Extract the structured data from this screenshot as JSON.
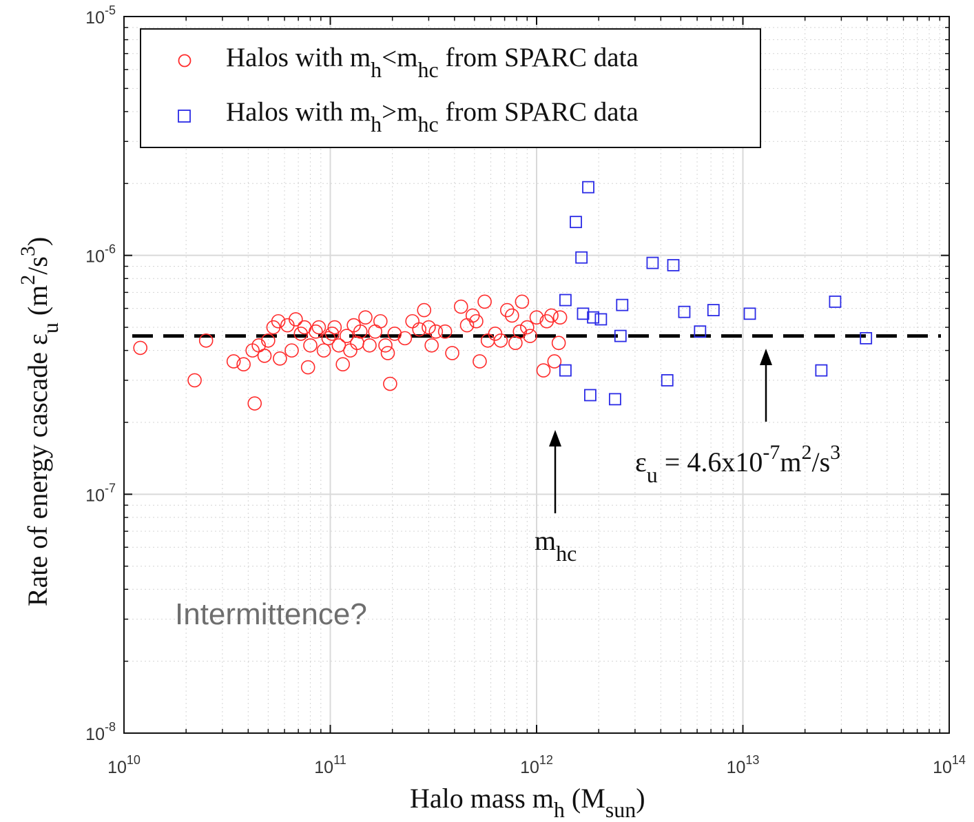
{
  "chart_data": {
    "type": "scatter",
    "title": "",
    "xlabel": {
      "main": "Halo mass m",
      "sub": "h",
      "unit_open": " (M",
      "unit_sub": "sun",
      "unit_close": ")"
    },
    "ylabel": {
      "main": "Rate of energy cascade ε",
      "sub": "u",
      "unit": " (m",
      "sup1": "2",
      "mid": "/s",
      "sup2": "3",
      "close": ")"
    },
    "x_scale": "log",
    "y_scale": "log",
    "xlim": [
      10000000000.0,
      100000000000000.0
    ],
    "ylim": [
      1e-08,
      1e-05
    ],
    "grid": true,
    "x_ticks": [
      {
        "value": 10000000000.0,
        "base": "10",
        "exp": "10"
      },
      {
        "value": 100000000000.0,
        "base": "10",
        "exp": "11"
      },
      {
        "value": 1000000000000.0,
        "base": "10",
        "exp": "12"
      },
      {
        "value": 10000000000000.0,
        "base": "10",
        "exp": "13"
      },
      {
        "value": 100000000000000.0,
        "base": "10",
        "exp": "14"
      }
    ],
    "y_ticks": [
      {
        "value": 1e-08,
        "base": "10",
        "exp": "-8"
      },
      {
        "value": 1e-07,
        "base": "10",
        "exp": "-7"
      },
      {
        "value": 1e-06,
        "base": "10",
        "exp": "-6"
      },
      {
        "value": 1e-05,
        "base": "10",
        "exp": "-5"
      }
    ],
    "legend_position": "top",
    "series": [
      {
        "name": {
          "pre": "Halos with m",
          "s1": "h",
          "op": "<m",
          "s2": "hc",
          "post": " from SPARC data"
        },
        "marker": "circle",
        "color": "#ff2a2a",
        "points": [
          [
            12000000000.0,
            4.1e-07
          ],
          [
            22000000000.0,
            3e-07
          ],
          [
            25000000000.0,
            4.4e-07
          ],
          [
            34000000000.0,
            3.6e-07
          ],
          [
            38000000000.0,
            3.5e-07
          ],
          [
            43000000000.0,
            2.4e-07
          ],
          [
            42000000000.0,
            4e-07
          ],
          [
            45000000000.0,
            4.2e-07
          ],
          [
            48000000000.0,
            3.8e-07
          ],
          [
            50000000000.0,
            4.4e-07
          ],
          [
            53000000000.0,
            5e-07
          ],
          [
            56000000000.0,
            5.3e-07
          ],
          [
            57000000000.0,
            3.7e-07
          ],
          [
            62000000000.0,
            5.1e-07
          ],
          [
            65000000000.0,
            4e-07
          ],
          [
            68000000000.0,
            5.4e-07
          ],
          [
            72000000000.0,
            4.7e-07
          ],
          [
            75000000000.0,
            5e-07
          ],
          [
            78000000000.0,
            3.4e-07
          ],
          [
            80000000000.0,
            4.2e-07
          ],
          [
            85000000000.0,
            4.8e-07
          ],
          [
            88000000000.0,
            5e-07
          ],
          [
            93000000000.0,
            4e-07
          ],
          [
            98000000000.0,
            4.5e-07
          ],
          [
            102000000000.0,
            4.7e-07
          ],
          [
            105000000000.0,
            5e-07
          ],
          [
            110000000000.0,
            4.2e-07
          ],
          [
            115000000000.0,
            3.5e-07
          ],
          [
            120000000000.0,
            4.6e-07
          ],
          [
            125000000000.0,
            4e-07
          ],
          [
            130000000000.0,
            5.1e-07
          ],
          [
            135000000000.0,
            4.3e-07
          ],
          [
            140000000000.0,
            4.8e-07
          ],
          [
            148000000000.0,
            5.5e-07
          ],
          [
            155000000000.0,
            4.2e-07
          ],
          [
            165000000000.0,
            4.8e-07
          ],
          [
            175000000000.0,
            5.3e-07
          ],
          [
            185000000000.0,
            4.2e-07
          ],
          [
            190000000000.0,
            3.9e-07
          ],
          [
            195000000000.0,
            2.9e-07
          ],
          [
            205000000000.0,
            4.7e-07
          ],
          [
            230000000000.0,
            4.5e-07
          ],
          [
            250000000000.0,
            5.3e-07
          ],
          [
            270000000000.0,
            4.9e-07
          ],
          [
            285000000000.0,
            5.9e-07
          ],
          [
            300000000000.0,
            5e-07
          ],
          [
            310000000000.0,
            4.2e-07
          ],
          [
            325000000000.0,
            4.8e-07
          ],
          [
            360000000000.0,
            4.8e-07
          ],
          [
            390000000000.0,
            3.9e-07
          ],
          [
            430000000000.0,
            6.1e-07
          ],
          [
            460000000000.0,
            5.1e-07
          ],
          [
            490000000000.0,
            5.6e-07
          ],
          [
            510000000000.0,
            5.3e-07
          ],
          [
            530000000000.0,
            3.6e-07
          ],
          [
            560000000000.0,
            6.4e-07
          ],
          [
            580000000000.0,
            4.4e-07
          ],
          [
            630000000000.0,
            4.7e-07
          ],
          [
            670000000000.0,
            4.4e-07
          ],
          [
            720000000000.0,
            5.9e-07
          ],
          [
            760000000000.0,
            5.6e-07
          ],
          [
            790000000000.0,
            4.3e-07
          ],
          [
            830000000000.0,
            4.8e-07
          ],
          [
            850000000000.0,
            6.4e-07
          ],
          [
            900000000000.0,
            5e-07
          ],
          [
            930000000000.0,
            4.6e-07
          ],
          [
            1000000000000.0,
            5.5e-07
          ],
          [
            1080000000000.0,
            3.3e-07
          ],
          [
            1120000000000.0,
            5.3e-07
          ],
          [
            1180000000000.0,
            5.6e-07
          ],
          [
            1220000000000.0,
            3.6e-07
          ],
          [
            1280000000000.0,
            4.3e-07
          ],
          [
            1300000000000.0,
            5.5e-07
          ]
        ]
      },
      {
        "name": {
          "pre": "Halos with m",
          "s1": "h",
          "op": ">m",
          "s2": "hc",
          "post": " from SPARC data"
        },
        "marker": "square",
        "color": "#2a2ae6",
        "points": [
          [
            1380000000000.0,
            6.5e-07
          ],
          [
            1380000000000.0,
            3.3e-07
          ],
          [
            1550000000000.0,
            1.38e-06
          ],
          [
            1650000000000.0,
            9.8e-07
          ],
          [
            1680000000000.0,
            5.7e-07
          ],
          [
            1780000000000.0,
            1.93e-06
          ],
          [
            1820000000000.0,
            2.6e-07
          ],
          [
            1880000000000.0,
            5.5e-07
          ],
          [
            2050000000000.0,
            5.4e-07
          ],
          [
            2400000000000.0,
            2.5e-07
          ],
          [
            2550000000000.0,
            4.6e-07
          ],
          [
            2600000000000.0,
            6.2e-07
          ],
          [
            3650000000000.0,
            9.3e-07
          ],
          [
            4300000000000.0,
            3e-07
          ],
          [
            4600000000000.0,
            9.1e-07
          ],
          [
            5200000000000.0,
            5.8e-07
          ],
          [
            6200000000000.0,
            4.8e-07
          ],
          [
            7200000000000.0,
            5.9e-07
          ],
          [
            10800000000000.0,
            5.7e-07
          ],
          [
            24000000000000.0,
            3.3e-07
          ],
          [
            28000000000000.0,
            6.4e-07
          ],
          [
            39500000000000.0,
            4.5e-07
          ]
        ]
      }
    ],
    "reference_line": {
      "value": 4.6e-07,
      "style": "dashed",
      "color": "#000000"
    },
    "annotations": {
      "eps": {
        "sym": "ε",
        "sub": "u",
        "eq": " = 4.6x10",
        "exp": "-7",
        "unit": "m",
        "sup1": "2",
        "mid": "/s",
        "sup2": "3"
      },
      "mhc": {
        "main": "m",
        "sub": "hc"
      },
      "intermittence": "Intermittence?"
    }
  }
}
